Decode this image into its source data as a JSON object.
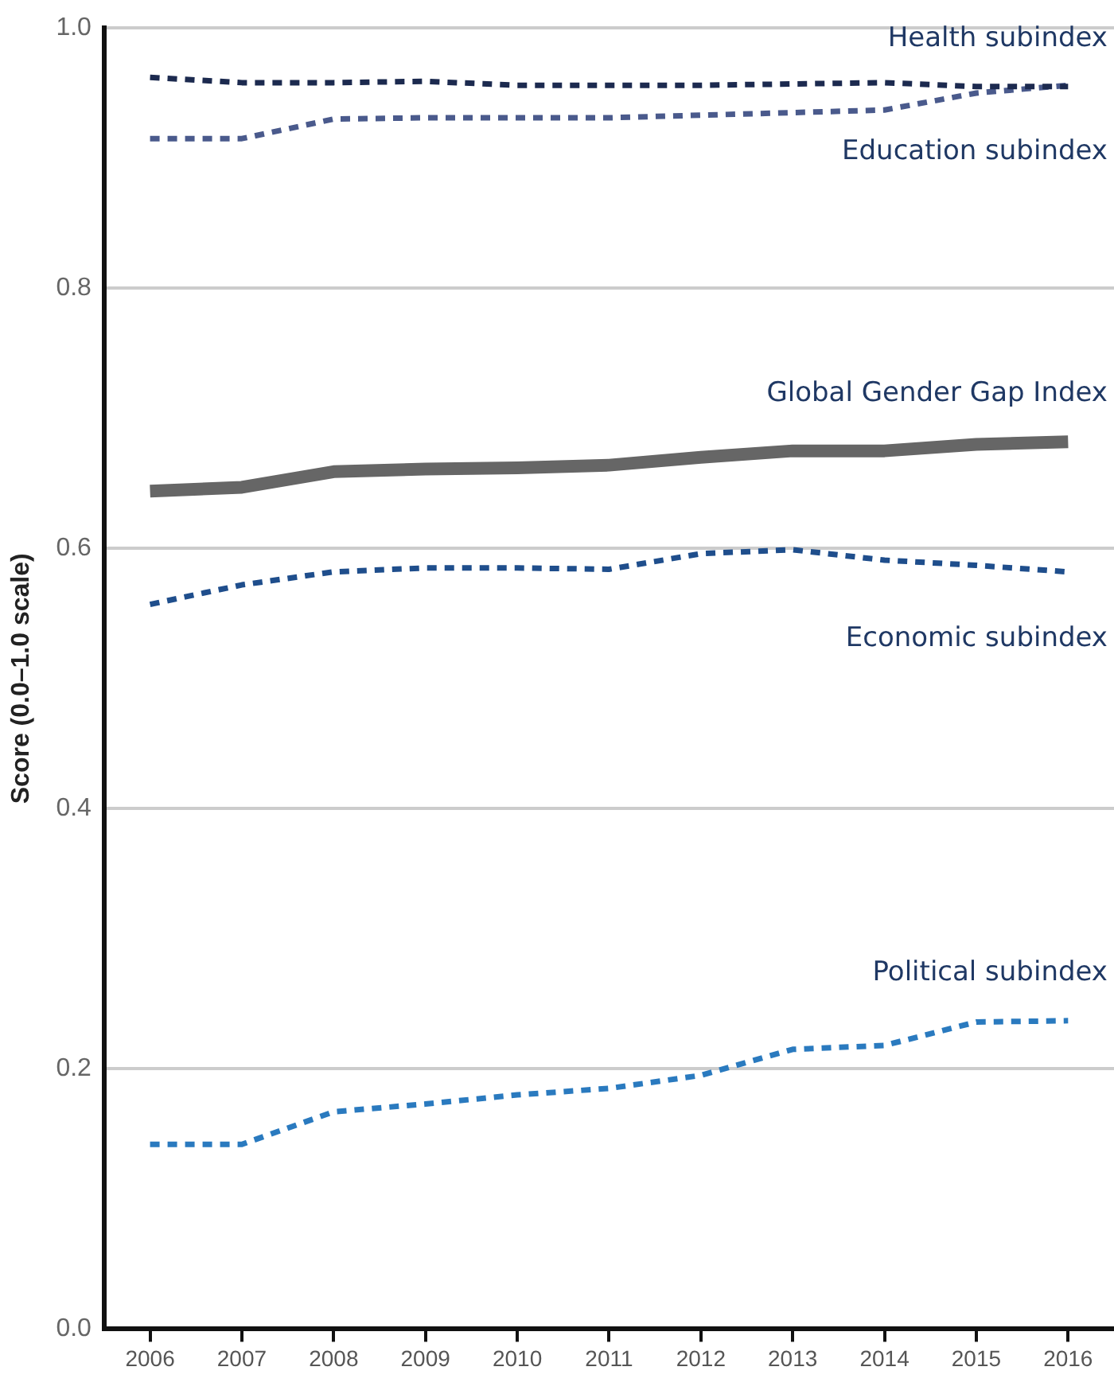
{
  "chart_data": {
    "type": "line",
    "ylabel": "Score (0.0–1.0 scale)",
    "categories": [
      "2006",
      "2007",
      "2008",
      "2009",
      "2010",
      "2011",
      "2012",
      "2013",
      "2014",
      "2015",
      "2016"
    ],
    "ylim": [
      0,
      1.0
    ],
    "yticks": [
      {
        "value": 0,
        "label": "0.0"
      },
      {
        "value": 0.2,
        "label": "0.2"
      },
      {
        "value": 0.4,
        "label": "0.4"
      },
      {
        "value": 0.6,
        "label": "0.6"
      },
      {
        "value": 0.8,
        "label": "0.8"
      },
      {
        "value": 1.0,
        "label": "1.0"
      }
    ],
    "grid": "y",
    "legend": false,
    "marker": "none",
    "series": [
      {
        "name": "Health subindex",
        "color": "#1c2a4f",
        "line_style": "dashed",
        "values": [
          0.962,
          0.958,
          0.958,
          0.959,
          0.956,
          0.956,
          0.956,
          0.957,
          0.958,
          0.955,
          0.955
        ]
      },
      {
        "name": "Education subindex",
        "color": "#4a5a8c",
        "line_style": "dashed",
        "values": [
          0.915,
          0.915,
          0.93,
          0.931,
          0.931,
          0.931,
          0.933,
          0.935,
          0.937,
          0.95,
          0.956
        ]
      },
      {
        "name": "Global Gender Gap Index",
        "color": "#666666",
        "line_style": "solid",
        "values": [
          0.644,
          0.647,
          0.659,
          0.661,
          0.662,
          0.664,
          0.67,
          0.675,
          0.675,
          0.68,
          0.682
        ]
      },
      {
        "name": "Economic subindex",
        "color": "#1f4e8c",
        "line_style": "dashed",
        "values": [
          0.557,
          0.572,
          0.582,
          0.585,
          0.585,
          0.584,
          0.596,
          0.599,
          0.591,
          0.587,
          0.582
        ]
      },
      {
        "name": "Political subindex",
        "color": "#2a7abf",
        "line_style": "dashed",
        "values": [
          0.142,
          0.142,
          0.167,
          0.173,
          0.18,
          0.185,
          0.195,
          0.215,
          0.218,
          0.236,
          0.237
        ]
      }
    ]
  }
}
